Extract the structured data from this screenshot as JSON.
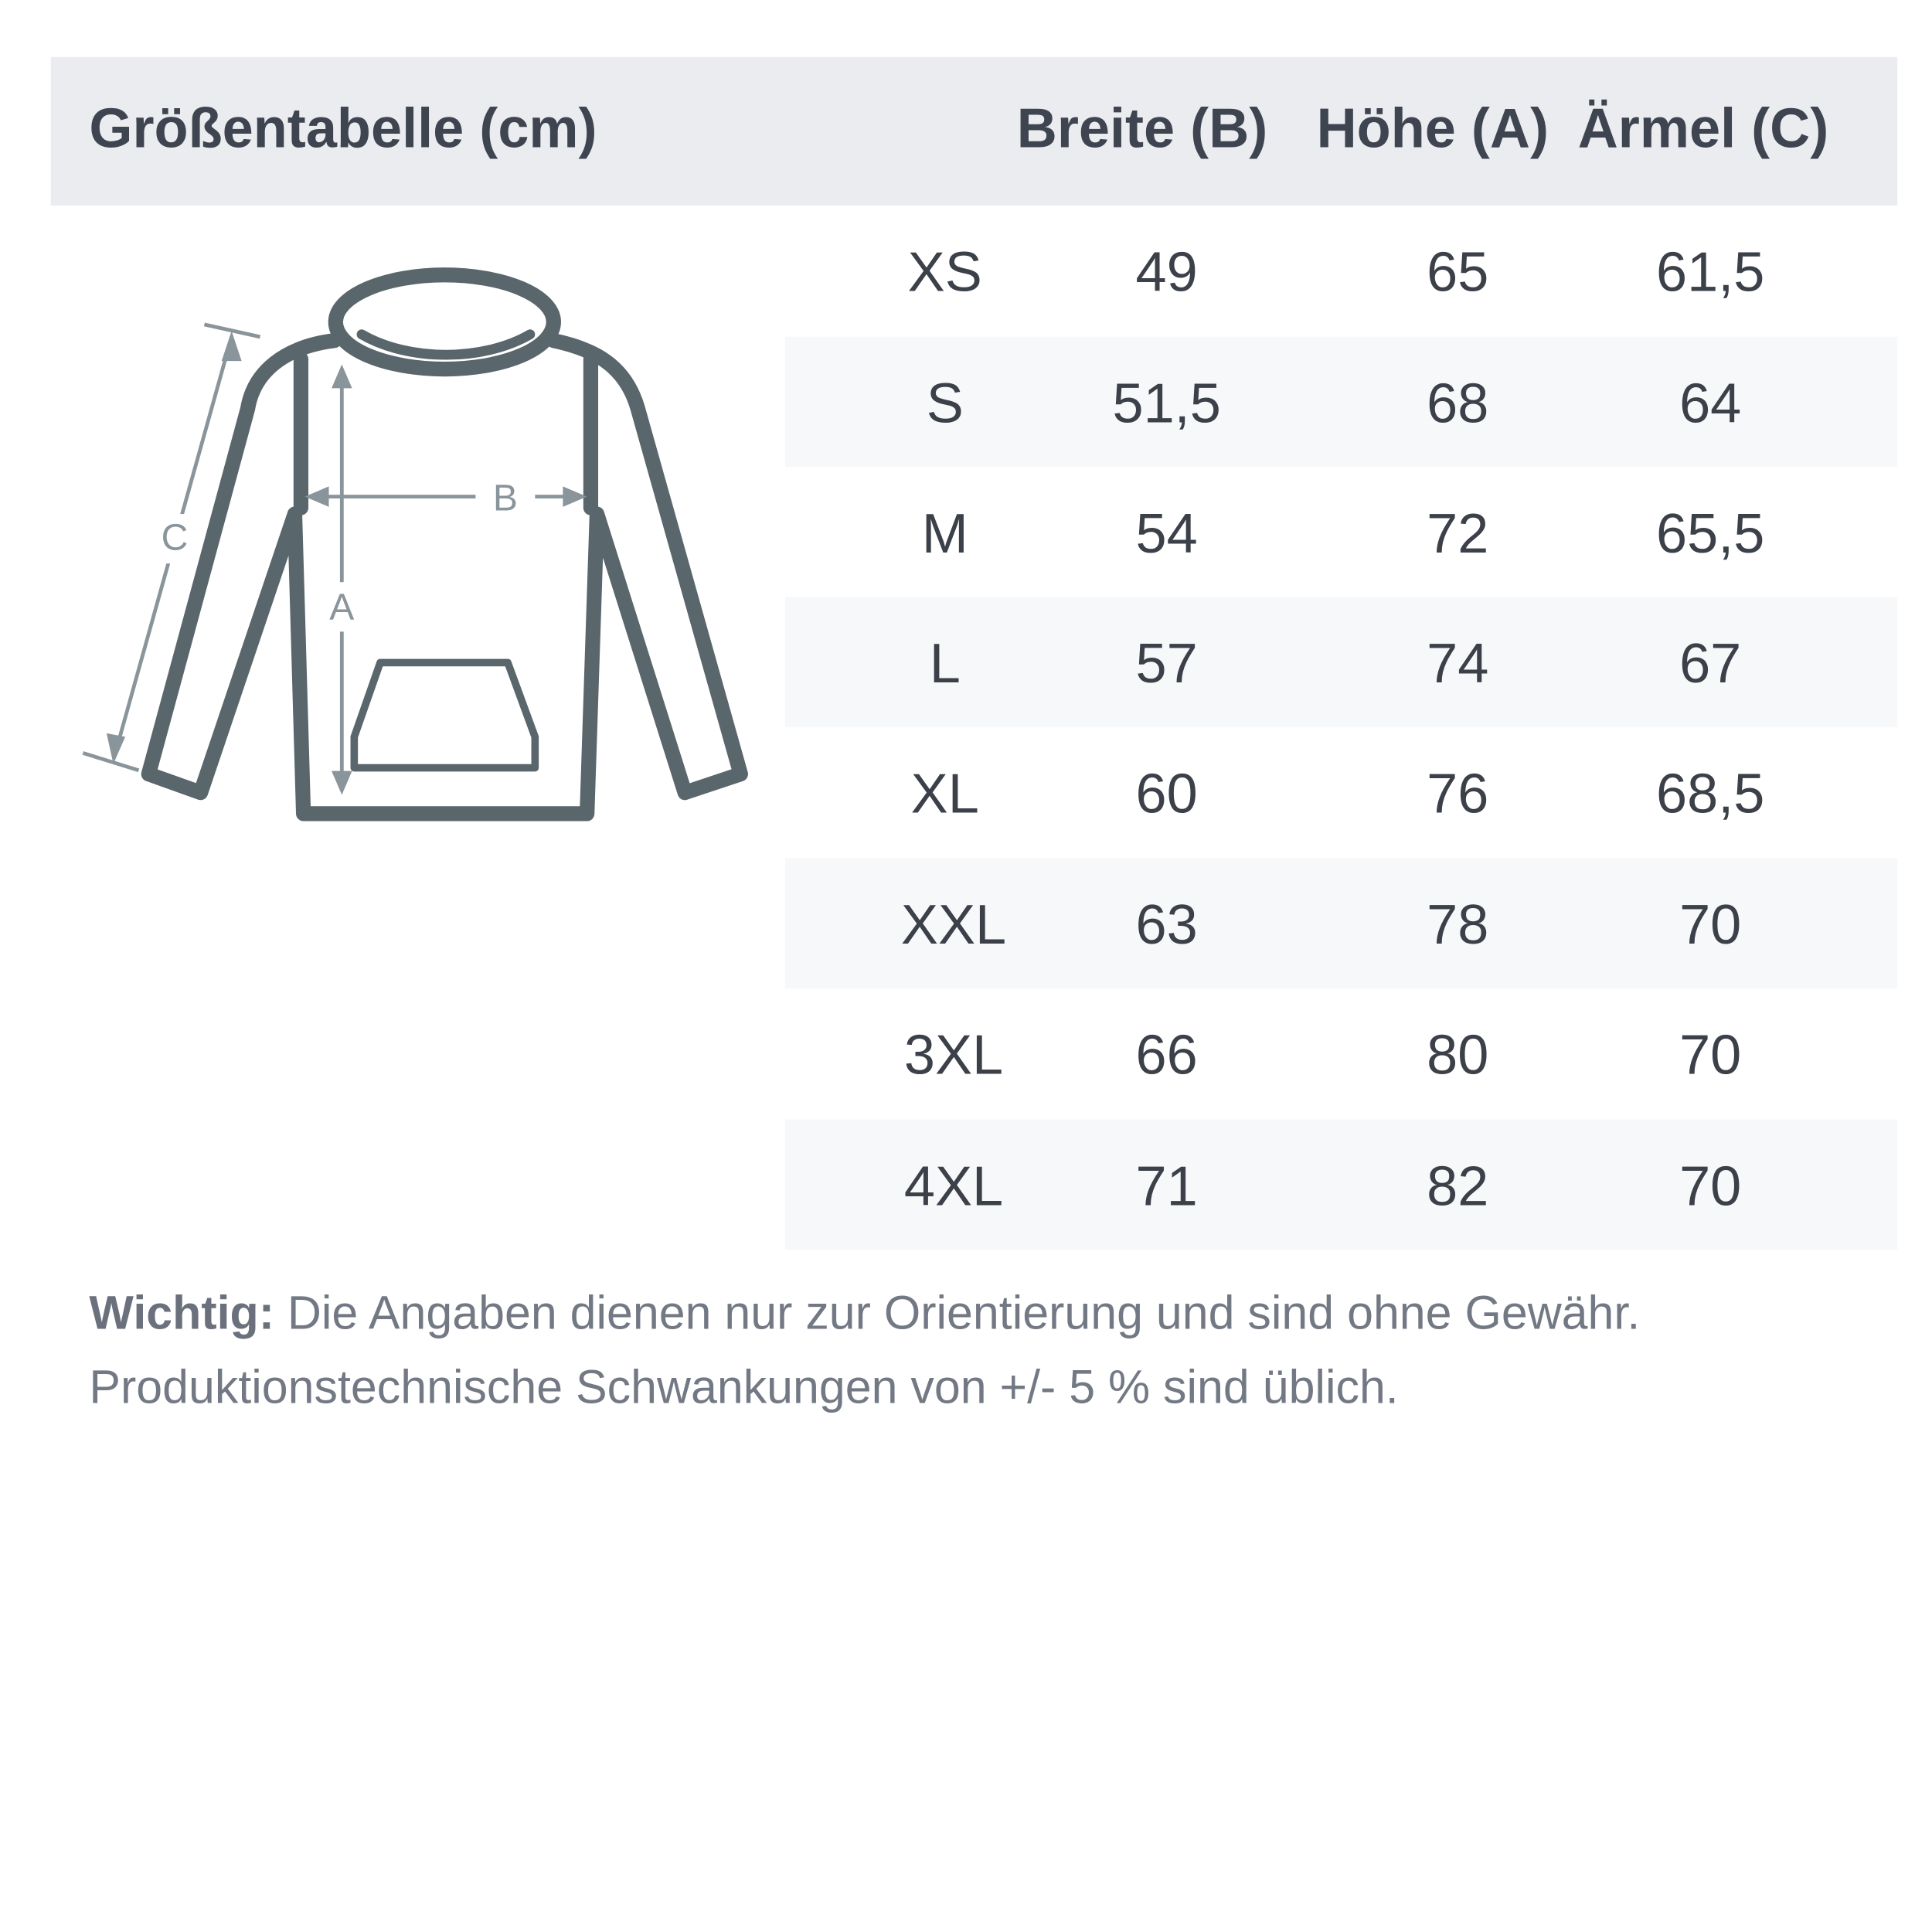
{
  "header": {
    "title": "Größentabelle (cm)",
    "columns": [
      "Breite (B)",
      "Höhe (A)",
      "Ärmel (C)"
    ]
  },
  "diagram": {
    "labels": {
      "width": "B",
      "height": "A",
      "sleeve": "C"
    }
  },
  "rows": [
    {
      "size": "XS",
      "breite": "49",
      "hoehe": "65",
      "aermel": "61,5"
    },
    {
      "size": "S",
      "breite": "51,5",
      "hoehe": "68",
      "aermel": "64"
    },
    {
      "size": "M",
      "breite": "54",
      "hoehe": "72",
      "aermel": "65,5"
    },
    {
      "size": "L",
      "breite": "57",
      "hoehe": "74",
      "aermel": "67"
    },
    {
      "size": "XL",
      "breite": "60",
      "hoehe": "76",
      "aermel": "68,5"
    },
    {
      "size": "XXL",
      "breite": "63",
      "hoehe": "78",
      "aermel": "70"
    },
    {
      "size": "3XL",
      "breite": "66",
      "hoehe": "80",
      "aermel": "70"
    },
    {
      "size": "4XL",
      "breite": "71",
      "hoehe": "82",
      "aermel": "70"
    }
  ],
  "note": {
    "label": "Wichtig:",
    "line1": "Die Angaben dienen nur zur Orientierung und sind ohne Gewähr.",
    "line2": "Produktionstechnische Schwankungen von +/- 5 % sind üblich."
  },
  "colors": {
    "header_bg": "#ebecf0",
    "stripe": "#f7f8fa",
    "outline": "#59666b",
    "measure": "#8a949b"
  }
}
